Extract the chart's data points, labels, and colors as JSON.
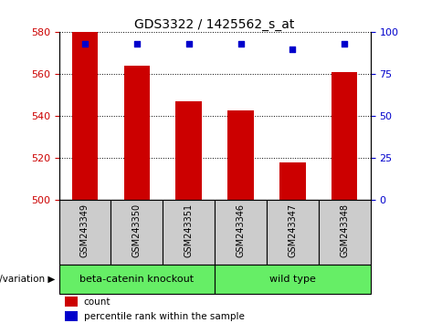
{
  "title": "GDS3322 / 1425562_s_at",
  "samples": [
    "GSM243349",
    "GSM243350",
    "GSM243351",
    "GSM243346",
    "GSM243347",
    "GSM243348"
  ],
  "bar_values": [
    580,
    564,
    547,
    543,
    518,
    561
  ],
  "percentile_values": [
    93,
    93,
    93,
    93,
    90,
    93
  ],
  "ymin": 500,
  "ymax": 580,
  "yticks": [
    500,
    520,
    540,
    560,
    580
  ],
  "right_yticks": [
    0,
    25,
    50,
    75,
    100
  ],
  "bar_color": "#cc0000",
  "dot_color": "#0000cc",
  "group1_label": "beta-catenin knockout",
  "group2_label": "wild type",
  "group1_color": "#66ee66",
  "group2_color": "#66ee66",
  "genotype_label": "genotype/variation",
  "legend_count_label": "count",
  "legend_percentile_label": "percentile rank within the sample",
  "left_tick_color": "#cc0000",
  "right_tick_color": "#0000cc",
  "grid_color": "#000000",
  "sample_bg_color": "#cccccc",
  "n_group1": 3,
  "n_group2": 3
}
